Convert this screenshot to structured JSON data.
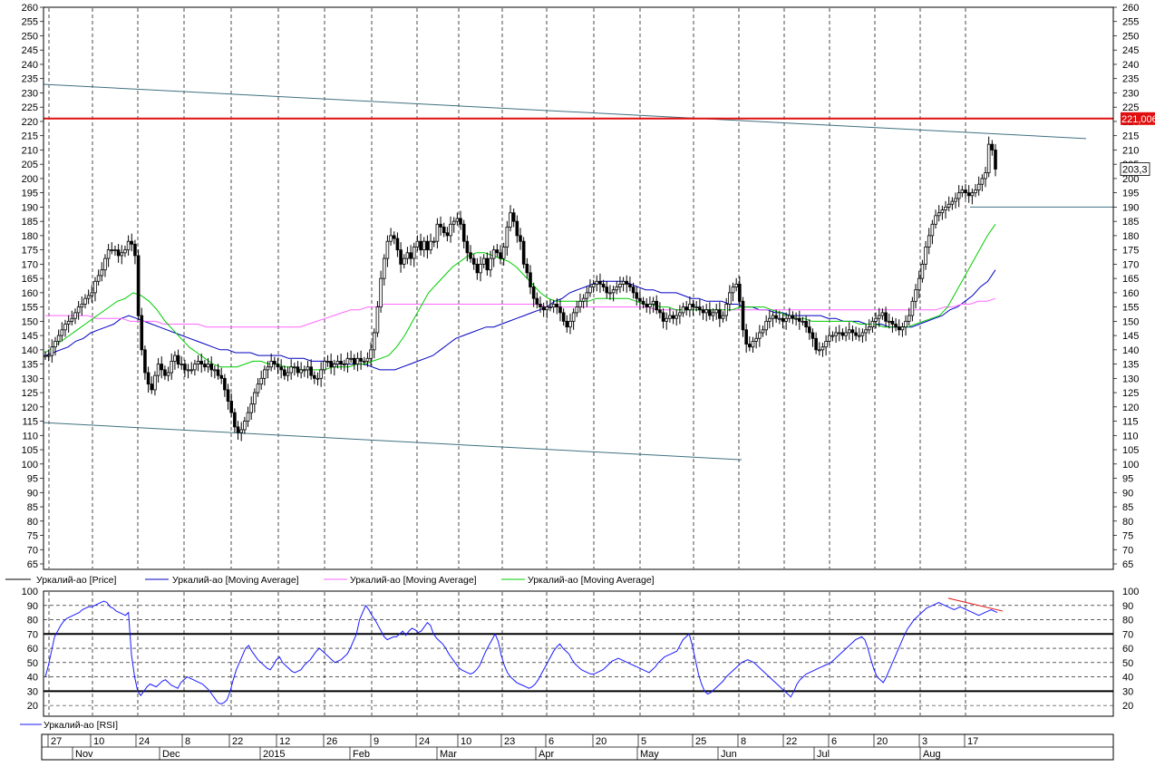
{
  "window_title": "",
  "colors": {
    "price": "#000000",
    "ma_long": "#0000c0",
    "ma_very_long": "#ff66ff",
    "ma_short": "#00cc00",
    "rsi": "#1a1aff",
    "trend_lines": "#407080",
    "resistance": "#e01010",
    "divergence": "#e01010",
    "grid": "#000000",
    "background": "#ffffff"
  },
  "legend": {
    "price": "Уркалий-ао [Price]",
    "ma1": "Уркалий-ао [Moving Average]",
    "ma2": "Уркалий-ао [Moving Average]",
    "ma3": "Уркалий-ао [Moving Average]",
    "rsi": "Уркалий-ао [RSI]"
  },
  "price_axis": {
    "min": 65,
    "max": 260,
    "step": 5,
    "last_price_label": "203,3",
    "resistance_label": "221,006"
  },
  "rsi_axis": {
    "ticks": [
      20,
      30,
      40,
      50,
      60,
      70,
      80,
      90,
      100
    ]
  },
  "time_axis": {
    "days": [
      "27",
      "10",
      "24",
      "8",
      "22",
      "12",
      "26",
      "9",
      "24",
      "10",
      "23",
      "6",
      "20",
      "5",
      "25",
      "8",
      "22",
      "6",
      "20",
      "3",
      "17"
    ],
    "months": [
      "Nov",
      "Dec",
      "2015",
      "Feb",
      "Mar",
      "Apr",
      "May",
      "Jun",
      "Jul",
      "Aug"
    ]
  },
  "chart_data": [
    {
      "type": "candlestick",
      "title": "",
      "ylim": [
        65,
        260
      ],
      "grid": true,
      "legend_position": "bottom-left",
      "series": [
        {
          "name": "Уркалий-ао [Price]",
          "values": [
            138,
            138,
            141,
            143,
            145,
            147,
            149,
            150,
            151,
            153,
            155,
            156,
            158,
            159,
            160,
            164,
            166,
            168,
            172,
            175,
            175,
            175,
            173,
            174,
            175,
            178,
            177,
            173,
            152,
            140,
            132,
            128,
            126,
            131,
            135,
            133,
            131,
            132,
            136,
            138,
            135,
            135,
            133,
            133,
            133,
            135,
            136,
            135,
            134,
            135,
            133,
            133,
            131,
            130,
            126,
            122,
            118,
            113,
            111,
            112,
            115,
            118,
            121,
            125,
            128,
            130,
            133,
            134,
            136,
            135,
            134,
            133,
            131,
            132,
            134,
            134,
            132,
            133,
            133,
            134,
            131,
            130,
            130,
            133,
            136,
            136,
            134,
            135,
            136,
            135,
            135,
            137,
            137,
            135,
            137,
            136,
            136,
            137,
            140,
            146,
            155,
            165,
            172,
            178,
            180,
            179,
            175,
            170,
            172,
            174,
            172,
            176,
            178,
            175,
            178,
            175,
            178,
            178,
            184,
            183,
            181,
            180,
            184,
            185,
            186,
            184,
            178,
            174,
            172,
            170,
            167,
            170,
            172,
            168,
            172,
            175,
            174,
            172,
            176,
            183,
            188,
            185,
            180,
            178,
            170,
            167,
            162,
            158,
            156,
            155,
            154,
            155,
            155,
            156,
            155,
            153,
            150,
            148,
            150,
            153,
            155,
            157,
            158,
            160,
            162,
            163,
            164,
            163,
            162,
            160,
            160,
            161,
            162,
            163,
            164,
            163,
            162,
            160,
            158,
            157,
            156,
            155,
            156,
            157,
            154,
            153,
            150,
            151,
            152,
            151,
            152,
            153,
            155,
            154,
            156,
            155,
            155,
            154,
            153,
            154,
            152,
            153,
            154,
            151,
            152,
            156,
            160,
            162,
            163,
            157,
            147,
            142,
            141,
            143,
            144,
            146,
            147,
            150,
            151,
            152,
            151,
            151,
            150,
            151,
            152,
            151,
            151,
            150,
            150,
            148,
            146,
            144,
            140,
            140,
            141,
            143,
            145,
            145,
            146,
            146,
            145,
            146,
            147,
            146,
            145,
            145,
            146,
            147,
            148,
            150,
            151,
            152,
            153,
            150,
            150,
            149,
            148,
            147,
            148,
            150,
            152,
            157,
            161,
            165,
            170,
            176,
            180,
            184,
            187,
            188,
            189,
            190,
            191,
            192,
            193,
            195,
            196,
            195,
            194,
            195,
            196,
            198,
            200,
            202,
            212,
            210,
            203.3
          ]
        },
        {
          "name": "Уркалий-ао [Moving Average]",
          "values": [
            138,
            139,
            140,
            141,
            143,
            144,
            146,
            147,
            148,
            149,
            151,
            152,
            151,
            150,
            149,
            148,
            147,
            146,
            145,
            144,
            143,
            142,
            141,
            140,
            140,
            139,
            139,
            139,
            138,
            138,
            138,
            138,
            137,
            137,
            137,
            136,
            136,
            136,
            135,
            135,
            135,
            135,
            135,
            134,
            133,
            133,
            133,
            134,
            135,
            136,
            137,
            138,
            140,
            142,
            144,
            145,
            146,
            147,
            148,
            148,
            149,
            150,
            151,
            152,
            153,
            154,
            155,
            157,
            158,
            160,
            161,
            162,
            163,
            164,
            164,
            164,
            164,
            163,
            162,
            161,
            161,
            160,
            160,
            160,
            159,
            158,
            158,
            157,
            157,
            157,
            156,
            156,
            155,
            155,
            154,
            154,
            153,
            153,
            152,
            152,
            152,
            152,
            152,
            151,
            151,
            150,
            150,
            150,
            149,
            149,
            149,
            148,
            148,
            148,
            148,
            149,
            150,
            151,
            152,
            154,
            155,
            157,
            159,
            162,
            164,
            168
          ]
        },
        {
          "name": "Уркалий-ао [Moving Average]",
          "values": [
            152,
            152,
            152,
            152,
            152,
            152,
            151,
            151,
            151,
            151,
            150,
            150,
            150,
            150,
            149,
            149,
            149,
            149,
            149,
            148,
            148,
            148,
            148,
            148,
            148,
            148,
            148,
            148,
            148,
            148,
            148,
            149,
            150,
            151,
            152,
            153,
            154,
            154,
            155,
            155,
            156,
            156,
            156,
            156,
            156,
            156,
            156,
            156,
            156,
            156,
            156,
            156,
            156,
            156,
            156,
            156,
            156,
            156,
            156,
            155,
            155,
            155,
            155,
            155,
            155,
            155,
            155,
            155,
            155,
            155,
            155,
            155,
            154,
            154,
            154,
            154,
            154,
            154,
            154,
            154,
            154,
            154,
            154,
            154,
            154,
            154,
            154,
            154,
            154,
            154,
            154,
            154,
            154,
            154,
            154,
            154,
            154,
            154,
            154,
            154,
            154,
            154,
            154,
            154,
            154,
            154,
            155,
            155,
            156,
            156,
            157,
            157,
            158
          ]
        },
        {
          "name": "Уркалий-ао [Moving Average]",
          "values": [
            139,
            141,
            143,
            145,
            147,
            149,
            151,
            153,
            155,
            157,
            158,
            160,
            159,
            157,
            154,
            150,
            147,
            144,
            141,
            139,
            137,
            135,
            134,
            134,
            134,
            135,
            136,
            136,
            135,
            135,
            134,
            134,
            133,
            133,
            133,
            133,
            134,
            134,
            134,
            135,
            135,
            136,
            137,
            138,
            141,
            145,
            150,
            155,
            160,
            163,
            166,
            169,
            171,
            173,
            174,
            174,
            173,
            172,
            171,
            169,
            166,
            163,
            160,
            158,
            157,
            157,
            157,
            157,
            157,
            158,
            158,
            158,
            158,
            158,
            157,
            156,
            156,
            155,
            155,
            154,
            154,
            154,
            154,
            154,
            154,
            154,
            154,
            155,
            155,
            155,
            155,
            154,
            153,
            152,
            151,
            151,
            150,
            150,
            150,
            150,
            150,
            150,
            149,
            149,
            149,
            148,
            148,
            148,
            148,
            149,
            150,
            151,
            152,
            155,
            160,
            165,
            170,
            175,
            180,
            184
          ]
        }
      ]
    },
    {
      "type": "line",
      "title": "",
      "ylim": [
        15,
        100
      ],
      "grid": true,
      "legend_position": "bottom-left",
      "series": [
        {
          "name": "Уркалий-ао [RSI]",
          "values": [
            40,
            48,
            58,
            68,
            72,
            76,
            79,
            81,
            82,
            83,
            84,
            85,
            87,
            88,
            89,
            89,
            90,
            91,
            92,
            93,
            92,
            89,
            88,
            86,
            85,
            84,
            83,
            85,
            55,
            40,
            30,
            27,
            30,
            33,
            35,
            34,
            33,
            35,
            37,
            38,
            36,
            34,
            33,
            32,
            36,
            38,
            40,
            39,
            38,
            37,
            36,
            35,
            33,
            31,
            28,
            25,
            22,
            21,
            22,
            24,
            30,
            38,
            45,
            50,
            55,
            60,
            62,
            58,
            55,
            52,
            50,
            48,
            46,
            45,
            48,
            52,
            54,
            50,
            48,
            46,
            44,
            43,
            44,
            45,
            48,
            50,
            52,
            55,
            58,
            60,
            58,
            56,
            54,
            52,
            50,
            51,
            52,
            54,
            56,
            60,
            65,
            70,
            80,
            85,
            90,
            87,
            83,
            80,
            76,
            72,
            68,
            66,
            67,
            68,
            68,
            70,
            72,
            69,
            72,
            74,
            73,
            71,
            72,
            75,
            78,
            76,
            70,
            67,
            65,
            63,
            60,
            56,
            53,
            50,
            47,
            45,
            44,
            43,
            42,
            43,
            45,
            48,
            53,
            58,
            62,
            66,
            70,
            65,
            55,
            48,
            43,
            40,
            38,
            36,
            35,
            34,
            33,
            32,
            33,
            35,
            38,
            42,
            46,
            50,
            54,
            58,
            61,
            63,
            60,
            58,
            56,
            52,
            49,
            47,
            45,
            44,
            43,
            42,
            42,
            43,
            44,
            45,
            47,
            49,
            51,
            52,
            53,
            52,
            51,
            50,
            49,
            48,
            47,
            46,
            45,
            44,
            43,
            45,
            47,
            50,
            52,
            54,
            55,
            56,
            57,
            58,
            62,
            66,
            68,
            70,
            62,
            52,
            42,
            35,
            30,
            28,
            29,
            31,
            33,
            35,
            37,
            40,
            42,
            44,
            46,
            48,
            50,
            51,
            52,
            51,
            50,
            48,
            46,
            44,
            42,
            40,
            38,
            36,
            34,
            32,
            30,
            28,
            26,
            30,
            35,
            38,
            40,
            42,
            43,
            44,
            45,
            46,
            47,
            48,
            49,
            50,
            52,
            54,
            56,
            58,
            60,
            62,
            64,
            66,
            67,
            68,
            66,
            60,
            52,
            45,
            40,
            38,
            36,
            40,
            45,
            50,
            55,
            60,
            65,
            70,
            74,
            77,
            80,
            82,
            84,
            86,
            88,
            89,
            90,
            91,
            92,
            91,
            90,
            89,
            88,
            87,
            88,
            89,
            88,
            87,
            86,
            85,
            84,
            83,
            84,
            85,
            86,
            87,
            86,
            85
          ]
        }
      ]
    }
  ]
}
